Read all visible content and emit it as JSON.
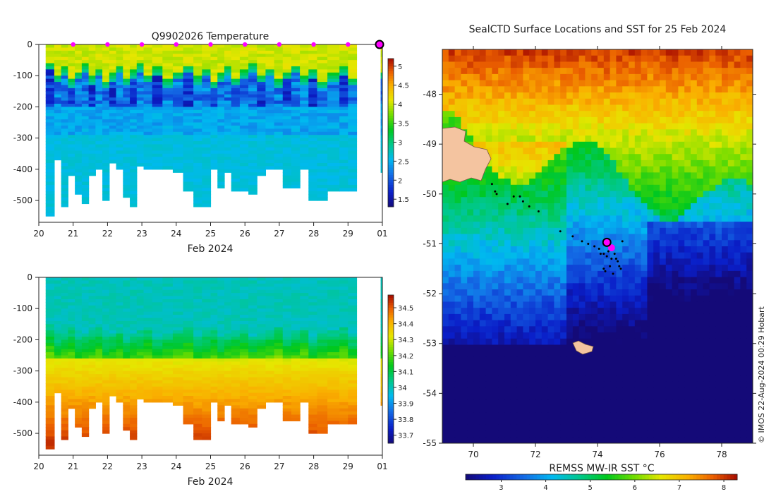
{
  "chart_data": [
    {
      "type": "heatmap",
      "id": "temperature_section",
      "title": "Q9902026  Temperature",
      "xlabel": "Feb 2024",
      "x_tick_labels": [
        "20",
        "21",
        "22",
        "23",
        "24",
        "25",
        "26",
        "27",
        "28",
        "29",
        "01"
      ],
      "xlim_days": [
        20,
        30
      ],
      "y_tick_labels": [
        "0",
        "-100",
        "-200",
        "-300",
        "-400",
        "-500"
      ],
      "ylim": [
        -570,
        0
      ],
      "colorbar_ticks": [
        "1.5",
        "2",
        "2.5",
        "3",
        "3.5",
        "4",
        "4.5",
        "5"
      ],
      "colorbar_range": [
        1.3,
        5.2
      ],
      "profile_days": [
        20.2,
        20.45,
        20.65,
        20.85,
        21.05,
        21.25,
        21.45,
        21.65,
        21.85,
        22.05,
        22.25,
        22.45,
        22.65,
        22.85,
        23.05,
        23.3,
        23.6,
        23.9,
        24.2,
        24.5,
        24.75,
        25.0,
        25.2,
        25.4,
        25.6,
        25.85,
        26.1,
        26.35,
        26.6,
        26.85,
        27.1,
        27.35,
        27.6,
        27.85,
        28.1,
        28.4,
        28.75,
        29.0
      ],
      "profile_max_depth": [
        550,
        370,
        515,
        420,
        480,
        505,
        420,
        400,
        500,
        375,
        400,
        485,
        520,
        390,
        400,
        400,
        400,
        410,
        470,
        520,
        520,
        400,
        455,
        410,
        470,
        465,
        475,
        420,
        395,
        400,
        460,
        460,
        400,
        500,
        500,
        470,
        470,
        470
      ],
      "surface_marker_days": [
        21,
        22,
        23,
        24,
        25,
        26,
        27,
        28,
        29
      ],
      "last_profile_marker_day": 30,
      "last_profile_max_depth": 410
    },
    {
      "type": "heatmap",
      "id": "salinity_section",
      "title": "",
      "xlabel": "Feb 2024",
      "x_tick_labels": [
        "20",
        "21",
        "22",
        "23",
        "24",
        "25",
        "26",
        "27",
        "28",
        "29",
        "01"
      ],
      "xlim_days": [
        20,
        30
      ],
      "y_tick_labels": [
        "0",
        "-100",
        "-200",
        "-300",
        "-400",
        "-500"
      ],
      "ylim": [
        -570,
        0
      ],
      "colorbar_ticks": [
        "33.7",
        "33.8",
        "33.9",
        "34",
        "34.1",
        "34.2",
        "34.3",
        "34.4",
        "34.5"
      ],
      "colorbar_range": [
        33.65,
        34.58
      ]
    },
    {
      "type": "heatmap",
      "id": "sst_map",
      "title": "SealCTD Surface Locations and SST for 25 Feb 2024",
      "xlim_lon": [
        69,
        79
      ],
      "ylim_lat": [
        -55,
        -47.1
      ],
      "x_tick_labels": [
        "70",
        "72",
        "74",
        "76",
        "78"
      ],
      "y_tick_labels": [
        "-48",
        "-49",
        "-50",
        "-51",
        "-52",
        "-53",
        "-54",
        "-55"
      ],
      "colorbar_label": "REMSS MW-IR SST °C",
      "colorbar_ticks": [
        "3",
        "4",
        "5",
        "6",
        "7",
        "8"
      ],
      "colorbar_range": [
        2.2,
        8.3
      ],
      "track_lonlat": [
        [
          70.6,
          -49.8
        ],
        [
          70.7,
          -49.95
        ],
        [
          70.75,
          -50.0
        ],
        [
          71.1,
          -50.2
        ],
        [
          71.3,
          -50.05
        ],
        [
          71.5,
          -50.05
        ],
        [
          71.6,
          -50.15
        ],
        [
          71.8,
          -50.25
        ],
        [
          72.1,
          -50.35
        ],
        [
          72.8,
          -50.75
        ],
        [
          73.2,
          -50.85
        ],
        [
          73.5,
          -50.95
        ],
        [
          73.7,
          -51.0
        ],
        [
          73.9,
          -51.05
        ],
        [
          74.05,
          -51.1
        ],
        [
          74.2,
          -51.2
        ],
        [
          74.1,
          -51.2
        ],
        [
          74.3,
          -51.25
        ],
        [
          74.45,
          -51.3
        ],
        [
          74.6,
          -51.3
        ],
        [
          74.65,
          -51.35
        ],
        [
          74.4,
          -51.45
        ],
        [
          74.25,
          -51.55
        ],
        [
          74.5,
          -51.6
        ],
        [
          74.7,
          -51.45
        ],
        [
          74.75,
          -51.5
        ],
        [
          74.2,
          -51.5
        ],
        [
          74.35,
          -51.15
        ],
        [
          74.5,
          -51.1
        ],
        [
          74.55,
          -51.2
        ],
        [
          74.8,
          -50.95
        ]
      ],
      "current_position": [
        74.3,
        -50.97
      ],
      "latest_fix": [
        74.45,
        -51.08
      ]
    }
  ],
  "credit": "© IMOS 22-Aug-2024 00:29 Hobart",
  "colors": {
    "land": "#f4c4a0",
    "surface_marker": "#ff00ff",
    "track": "#000000"
  }
}
